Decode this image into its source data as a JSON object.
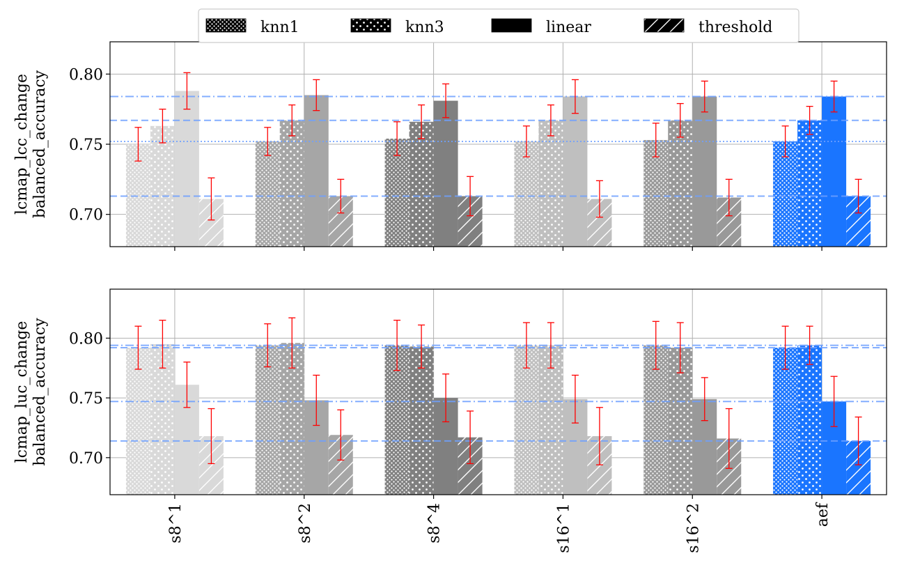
{
  "chart_data": {
    "type": "bar",
    "categories": [
      "s8^1",
      "s8^2",
      "s8^4",
      "s16^1",
      "s16^2",
      "aef"
    ],
    "legend": {
      "entries": [
        {
          "label": "knn1",
          "pattern": "dense-dots"
        },
        {
          "label": "knn3",
          "pattern": "dots"
        },
        {
          "label": "linear",
          "pattern": "solid"
        },
        {
          "label": "threshold",
          "pattern": "hatch"
        }
      ],
      "placement": "top-center"
    },
    "colors": {
      "categories": [
        "#d9d9d9",
        "#a6a6a6",
        "#808080",
        "#bfbfbf",
        "#999999",
        "#1a75ff"
      ],
      "error_bar": "#ff0000",
      "reference_line": "#6ea0ff",
      "grid": "#b0b0b0"
    },
    "panels": [
      {
        "ylabel_line1": "lcmap_lcc_change",
        "ylabel_line2": "balanced_accuracy",
        "ylim": [
          0.677,
          0.823
        ],
        "yticks": [
          0.7,
          0.75,
          0.8
        ],
        "ytick_labels": [
          "0.70",
          "0.75",
          "0.80"
        ],
        "series": [
          {
            "name": "knn1",
            "values": [
              0.75,
              0.752,
              0.754,
              0.752,
              0.753,
              0.752
            ],
            "errors": [
              0.012,
              0.01,
              0.012,
              0.011,
              0.012,
              0.011
            ]
          },
          {
            "name": "knn3",
            "values": [
              0.763,
              0.767,
              0.766,
              0.767,
              0.767,
              0.767
            ],
            "errors": [
              0.012,
              0.011,
              0.012,
              0.011,
              0.012,
              0.01
            ]
          },
          {
            "name": "linear",
            "values": [
              0.788,
              0.785,
              0.781,
              0.784,
              0.784,
              0.784
            ],
            "errors": [
              0.013,
              0.011,
              0.012,
              0.012,
              0.011,
              0.011
            ]
          },
          {
            "name": "threshold",
            "values": [
              0.711,
              0.713,
              0.713,
              0.711,
              0.712,
              0.713
            ],
            "errors": [
              0.015,
              0.012,
              0.014,
              0.013,
              0.013,
              0.012
            ]
          }
        ],
        "reference_lines": [
          {
            "value": 0.784,
            "style": "dashdot"
          },
          {
            "value": 0.767,
            "style": "dashed"
          },
          {
            "value": 0.752,
            "style": "dotted"
          },
          {
            "value": 0.713,
            "style": "dashed"
          }
        ],
        "show_xticklabels": false
      },
      {
        "ylabel_line1": "lcmap_luc_change",
        "ylabel_line2": "balanced_accuracy",
        "ylim": [
          0.669,
          0.841
        ],
        "yticks": [
          0.7,
          0.75,
          0.8
        ],
        "ytick_labels": [
          "0.70",
          "0.75",
          "0.80"
        ],
        "series": [
          {
            "name": "knn1",
            "values": [
              0.792,
              0.794,
              0.794,
              0.794,
              0.794,
              0.792
            ],
            "errors": [
              0.018,
              0.018,
              0.021,
              0.019,
              0.02,
              0.018
            ]
          },
          {
            "name": "knn3",
            "values": [
              0.795,
              0.796,
              0.793,
              0.794,
              0.792,
              0.794
            ],
            "errors": [
              0.02,
              0.021,
              0.018,
              0.019,
              0.021,
              0.016
            ]
          },
          {
            "name": "linear",
            "values": [
              0.761,
              0.748,
              0.75,
              0.749,
              0.749,
              0.747
            ],
            "errors": [
              0.019,
              0.021,
              0.02,
              0.02,
              0.018,
              0.021
            ]
          },
          {
            "name": "threshold",
            "values": [
              0.718,
              0.719,
              0.717,
              0.718,
              0.716,
              0.714
            ],
            "errors": [
              0.023,
              0.021,
              0.022,
              0.024,
              0.025,
              0.02
            ]
          }
        ],
        "reference_lines": [
          {
            "value": 0.794,
            "style": "dashdot"
          },
          {
            "value": 0.792,
            "style": "dashed"
          },
          {
            "value": 0.747,
            "style": "dashdot"
          },
          {
            "value": 0.714,
            "style": "dashed"
          }
        ],
        "show_xticklabels": true
      }
    ]
  }
}
